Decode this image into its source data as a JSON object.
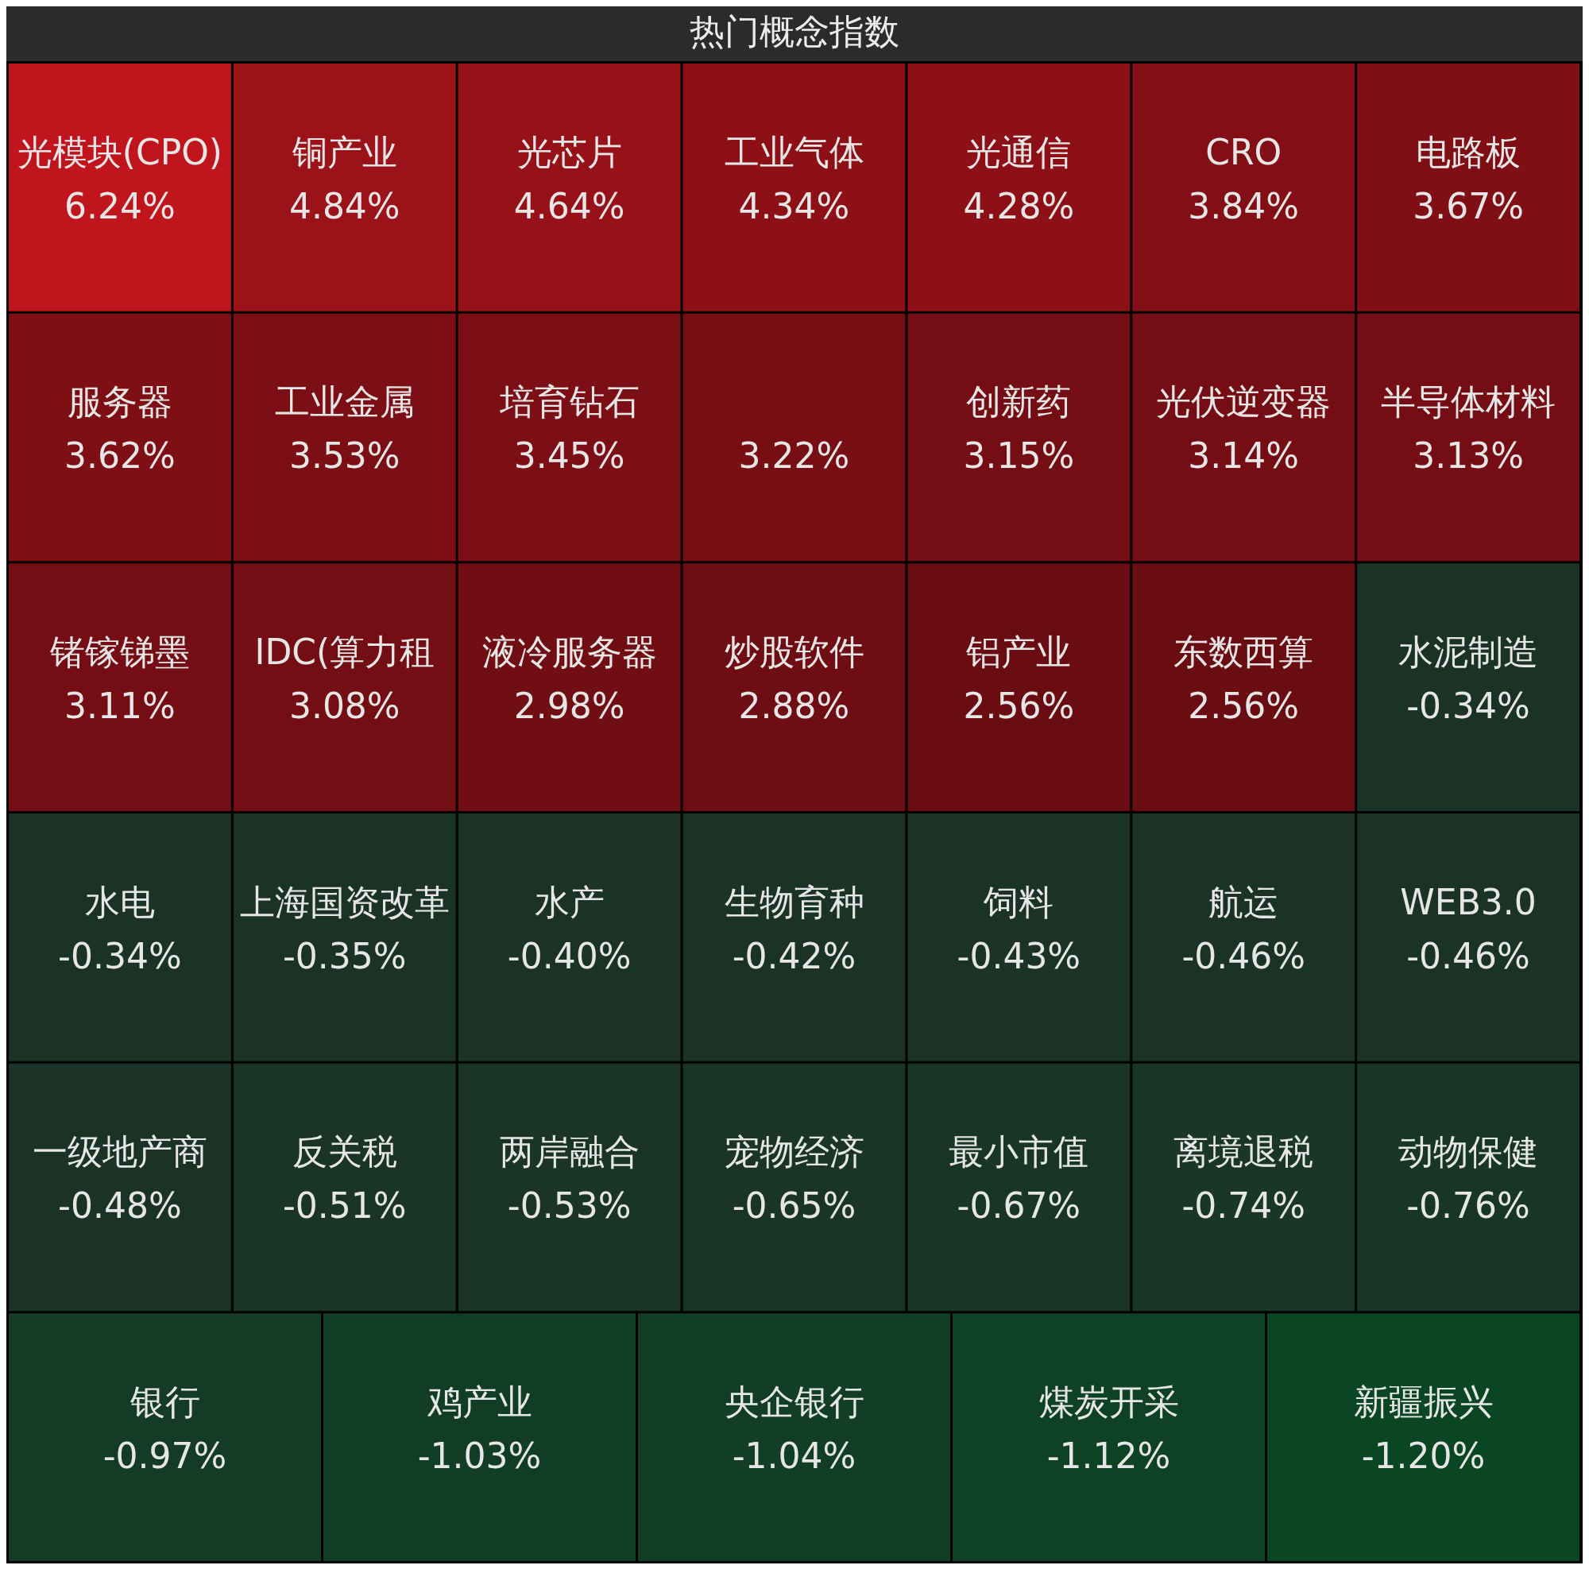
{
  "chart_data": {
    "type": "other",
    "title": "热门概念指数",
    "categories": [
      "光模块(CPO)",
      "铜产业",
      "光芯片",
      "工业气体",
      "光通信",
      "CRO",
      "电路板",
      "服务器",
      "工业金属",
      "培育钻石",
      null,
      "创新药",
      "光伏逆变器",
      "半导体材料",
      "锗镓锑墨",
      "IDC(算力租",
      "液冷服务器",
      "炒股软件",
      "铝产业",
      "东数西算",
      "水泥制造",
      "水电",
      "上海国资改革",
      "水产",
      "生物育种",
      "饲料",
      "航运",
      "WEB3.0",
      "一级地产商",
      "反关税",
      "两岸融合",
      "宠物经济",
      "最小市值",
      "离境退税",
      "动物保健",
      "银行",
      "鸡产业",
      "央企银行",
      "煤炭开采",
      "新疆振兴"
    ],
    "values": [
      6.24,
      4.84,
      4.64,
      4.34,
      4.28,
      3.84,
      3.67,
      3.62,
      3.53,
      3.45,
      3.22,
      3.15,
      3.14,
      3.13,
      3.11,
      3.08,
      2.98,
      2.88,
      2.56,
      2.56,
      -0.34,
      -0.34,
      -0.35,
      -0.4,
      -0.42,
      -0.43,
      -0.46,
      -0.46,
      -0.48,
      -0.51,
      -0.53,
      -0.65,
      -0.67,
      -0.74,
      -0.76,
      -0.97,
      -1.03,
      -1.04,
      -1.12,
      -1.2
    ],
    "value_labels": [
      "6.24%",
      "4.84%",
      "4.64%",
      "4.34%",
      "4.28%",
      "3.84%",
      "3.67%",
      "3.62%",
      "3.53%",
      "3.45%",
      "3.22%",
      "3.15%",
      "3.14%",
      "3.13%",
      "3.11%",
      "3.08%",
      "2.98%",
      "2.88%",
      "2.56%",
      "2.56%",
      "-0.34%",
      "-0.34%",
      "-0.35%",
      "-0.40%",
      "-0.42%",
      "-0.43%",
      "-0.46%",
      "-0.46%",
      "-0.48%",
      "-0.51%",
      "-0.53%",
      "-0.65%",
      "-0.67%",
      "-0.74%",
      "-0.76%",
      "-0.97%",
      "-1.03%",
      "-1.04%",
      "-1.12%",
      "-1.20%"
    ]
  }
}
